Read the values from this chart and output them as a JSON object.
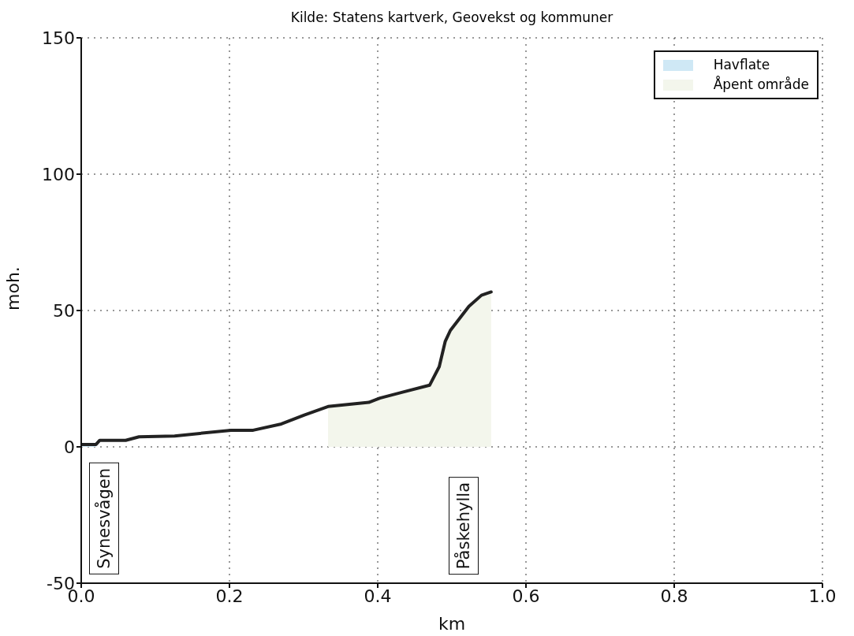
{
  "chart_data": {
    "type": "line",
    "title": "Kilde: Statens kartverk, Geovekst og kommuner",
    "xlabel": "km",
    "ylabel": "moh.",
    "series": [
      {
        "type": "area",
        "name": "Havflate",
        "color": "#cfe8f5",
        "x": [
          0,
          0.02
        ],
        "values": [
          0.9,
          0.9
        ]
      },
      {
        "type": "area",
        "name": "Åpent område",
        "color": "#f3f6ec",
        "x": [
          0.333,
          0.388,
          0.403,
          0.47,
          0.483,
          0.491,
          0.498,
          0.523,
          0.54,
          0.553
        ],
        "values": [
          14.8,
          16.3,
          17.9,
          22.6,
          29.4,
          38.6,
          42.7,
          51.5,
          55.6,
          56.8
        ]
      },
      {
        "color": "#222222",
        "x": [
          0,
          0.02,
          0.025,
          0.06,
          0.078,
          0.126,
          0.202,
          0.232,
          0.27,
          0.301,
          0.333,
          0.388,
          0.403,
          0.47,
          0.483,
          0.491,
          0.498,
          0.523,
          0.54,
          0.553
        ],
        "values": [
          0.9,
          0.9,
          2.4,
          2.4,
          3.7,
          4.0,
          6.1,
          6.1,
          8.4,
          11.7,
          14.8,
          16.3,
          17.9,
          22.6,
          29.4,
          38.6,
          42.7,
          51.5,
          55.6,
          56.8
        ]
      }
    ],
    "annotations": [
      "Synesvågen",
      "Påskehylla"
    ],
    "xlim": [
      0,
      1
    ],
    "xticks": [
      {
        "value": 0,
        "label": "0.0"
      },
      {
        "value": 0.2,
        "label": "0.2"
      },
      {
        "value": 0.4,
        "label": "0.4"
      },
      {
        "value": 0.6,
        "label": "0.6"
      },
      {
        "value": 0.8,
        "label": "0.8"
      },
      {
        "value": 1,
        "label": "1.0"
      }
    ],
    "ylim": [
      -50,
      150
    ],
    "yticks": [
      -50,
      0,
      50,
      100,
      150
    ],
    "grid": true,
    "legend": "top right",
    "marker": "none",
    "line_style": "solid"
  }
}
